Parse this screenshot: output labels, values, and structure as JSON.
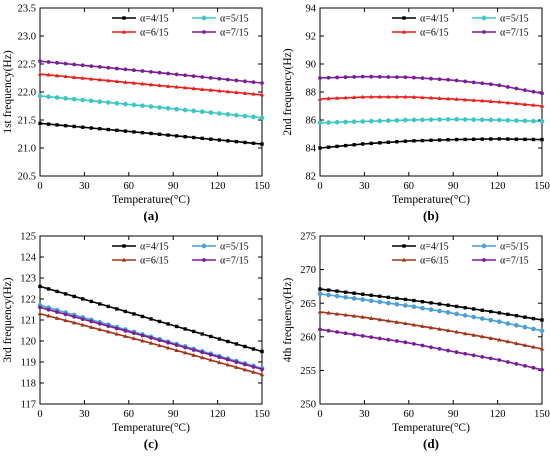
{
  "figure": {
    "panels": [
      {
        "letter": "(a)"
      },
      {
        "letter": "(b)"
      },
      {
        "letter": "(c)"
      },
      {
        "letter": "(d)"
      }
    ]
  },
  "chart_data": [
    {
      "type": "line",
      "panel_label": "(a)",
      "xlabel": "Temperature(°C)",
      "ylabel": "1st frequency(Hz)",
      "xlim": [
        0,
        150
      ],
      "ylim": [
        20.5,
        23.5
      ],
      "xticks": [
        0,
        30,
        60,
        90,
        120,
        150
      ],
      "yticks": [
        20.5,
        21.0,
        21.5,
        22.0,
        22.5,
        23.0,
        23.5
      ],
      "ytick_labels": [
        "20.5",
        "21.0",
        "21.5",
        "22.0",
        "22.5",
        "23.0",
        "23.5"
      ],
      "grid": false,
      "legend_position": "top",
      "x": [
        0,
        75,
        150
      ],
      "series": [
        {
          "name": "α=4/15",
          "color": "#000000",
          "marker": "square",
          "values": [
            21.44,
            21.26,
            21.07
          ]
        },
        {
          "name": "α=5/15",
          "color": "#3cc6c6",
          "marker": "circle",
          "values": [
            21.93,
            21.74,
            21.54
          ]
        },
        {
          "name": "α=6/15",
          "color": "#e8201f",
          "marker": "triangle",
          "values": [
            22.32,
            22.13,
            21.95
          ]
        },
        {
          "name": "α=7/15",
          "color": "#7a1e96",
          "marker": "star",
          "values": [
            22.55,
            22.36,
            22.16
          ]
        }
      ]
    },
    {
      "type": "line",
      "panel_label": "(b)",
      "xlabel": "Temperature(°C)",
      "ylabel": "2nd frequency(Hz)",
      "xlim": [
        0,
        150
      ],
      "ylim": [
        82,
        94
      ],
      "xticks": [
        0,
        30,
        60,
        90,
        120,
        150
      ],
      "yticks": [
        82,
        84,
        86,
        88,
        90,
        92,
        94
      ],
      "ytick_labels": [
        "82",
        "84",
        "86",
        "88",
        "90",
        "92",
        "94"
      ],
      "grid": false,
      "legend_position": "top",
      "x": [
        0,
        30,
        60,
        90,
        120,
        150
      ],
      "series": [
        {
          "name": "α=4/15",
          "color": "#000000",
          "marker": "square",
          "values": [
            84.0,
            84.3,
            84.5,
            84.6,
            84.65,
            84.6
          ]
        },
        {
          "name": "α=5/15",
          "color": "#3cc6c6",
          "marker": "circle",
          "values": [
            85.8,
            85.9,
            86.0,
            86.05,
            86.0,
            85.9
          ]
        },
        {
          "name": "α=6/15",
          "color": "#e8201f",
          "marker": "triangle",
          "values": [
            87.5,
            87.65,
            87.65,
            87.5,
            87.3,
            87.0
          ]
        },
        {
          "name": "α=7/15",
          "color": "#7a1e96",
          "marker": "star",
          "values": [
            89.0,
            89.1,
            89.05,
            88.85,
            88.5,
            87.9
          ]
        }
      ]
    },
    {
      "type": "line",
      "panel_label": "(c)",
      "xlabel": "Temperature(°C)",
      "ylabel": "3rd frequency(Hz)",
      "xlim": [
        0,
        150
      ],
      "ylim": [
        117,
        125
      ],
      "xticks": [
        0,
        30,
        60,
        90,
        120,
        150
      ],
      "yticks": [
        117,
        118,
        119,
        120,
        121,
        122,
        123,
        124,
        125
      ],
      "ytick_labels": [
        "117",
        "118",
        "119",
        "120",
        "121",
        "122",
        "123",
        "124",
        "125"
      ],
      "grid": false,
      "legend_position": "top",
      "x": [
        0,
        75,
        150
      ],
      "series": [
        {
          "name": "α=4/15",
          "color": "#000000",
          "marker": "square",
          "values": [
            122.6,
            121.05,
            119.5
          ]
        },
        {
          "name": "α=5/15",
          "color": "#4a9fd4",
          "marker": "circle",
          "values": [
            121.7,
            120.2,
            118.7
          ]
        },
        {
          "name": "α=6/15",
          "color": "#a0351a",
          "marker": "triangle",
          "values": [
            121.3,
            119.9,
            118.4
          ]
        },
        {
          "name": "α=7/15",
          "color": "#7a1e96",
          "marker": "star",
          "values": [
            121.6,
            120.15,
            118.65
          ]
        }
      ]
    },
    {
      "type": "line",
      "panel_label": "(d)",
      "xlabel": "Temperature(°C)",
      "ylabel": "4th frequency(Hz)",
      "xlim": [
        0,
        150
      ],
      "ylim": [
        250,
        275
      ],
      "xticks": [
        0,
        30,
        60,
        90,
        120,
        150
      ],
      "yticks": [
        250,
        255,
        260,
        265,
        270,
        275
      ],
      "ytick_labels": [
        "250",
        "255",
        "260",
        "265",
        "270",
        "275"
      ],
      "grid": false,
      "legend_position": "top",
      "x": [
        0,
        30,
        60,
        90,
        120,
        150
      ],
      "series": [
        {
          "name": "α=4/15",
          "color": "#000000",
          "marker": "square",
          "values": [
            267.1,
            266.3,
            265.5,
            264.6,
            263.6,
            262.5
          ]
        },
        {
          "name": "α=5/15",
          "color": "#4a9fd4",
          "marker": "circle",
          "values": [
            266.4,
            265.5,
            264.6,
            263.5,
            262.3,
            260.9
          ]
        },
        {
          "name": "α=6/15",
          "color": "#a0351a",
          "marker": "triangle",
          "values": [
            263.7,
            262.9,
            261.9,
            260.8,
            259.6,
            258.2
          ]
        },
        {
          "name": "α=7/15",
          "color": "#7a1e96",
          "marker": "star",
          "values": [
            261.1,
            260.1,
            259.1,
            257.8,
            256.6,
            255.1
          ]
        }
      ]
    }
  ]
}
